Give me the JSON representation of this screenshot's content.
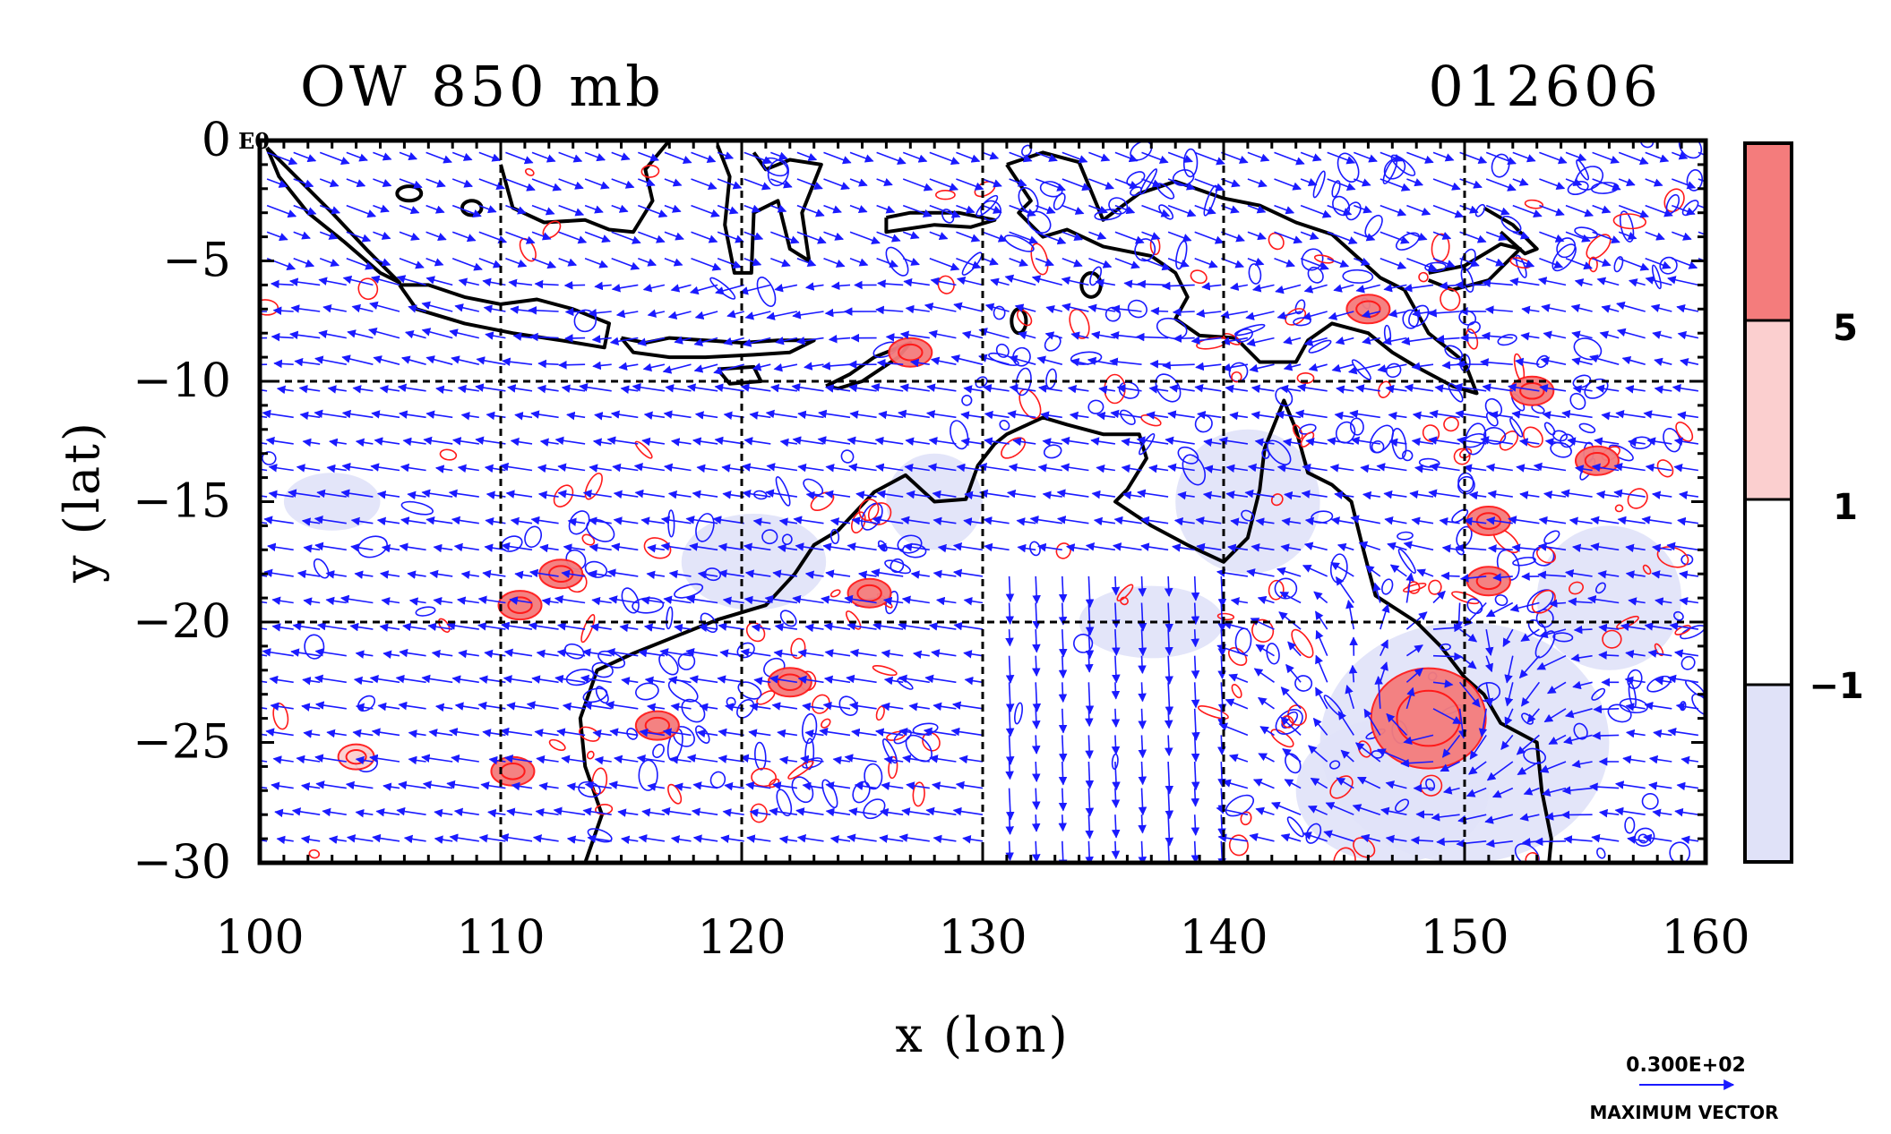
{
  "title_left": "OW 850 mb",
  "title_right": "012606",
  "corner_label": "E0",
  "xlabel": "x (lon)",
  "ylabel": "y (lat)",
  "x_ticks": [
    "100",
    "110",
    "120",
    "130",
    "140",
    "150",
    "160"
  ],
  "y_ticks": [
    "0",
    "−5",
    "−10",
    "−15",
    "−20",
    "−25",
    "−30"
  ],
  "colorbar": {
    "labels": [
      "5",
      "1",
      "−1"
    ],
    "colors": [
      "#f47c7c",
      "#fbcfcf",
      "#ffffff",
      "#e0e2f8"
    ]
  },
  "vector_legend": {
    "value": "0.300E+02",
    "label": "MAXIMUM VECTOR"
  },
  "colors": {
    "vectors": "#1a1aff",
    "positive_contour": "#ff1a1a",
    "coastline": "#000000",
    "negative_shade": "#e0e2f8",
    "positive_shade": "#f47c7c"
  },
  "chart_data": {
    "type": "map",
    "xlim": [
      100,
      160
    ],
    "ylim": [
      -30,
      0
    ],
    "grid": true,
    "x_grid": [
      110,
      120,
      130,
      140,
      150
    ],
    "y_grid": [
      -10,
      -20
    ],
    "colorbar_levels": [
      -1,
      1,
      5
    ],
    "features": [
      {
        "lon": 148.5,
        "lat": -24,
        "value": 5
      },
      {
        "lon": 155.5,
        "lat": -13.3,
        "value": 5
      },
      {
        "lon": 110.8,
        "lat": -19.3,
        "value": 5
      },
      {
        "lon": 125.3,
        "lat": -18.8,
        "value": 5
      },
      {
        "lon": 110.5,
        "lat": -26.2,
        "value": 5
      },
      {
        "lon": 104.0,
        "lat": -25.6,
        "value": 1
      },
      {
        "lon": 112.5,
        "lat": -18,
        "value": 5
      },
      {
        "lon": 152.8,
        "lat": -10.4,
        "value": 5
      },
      {
        "lon": 151.0,
        "lat": -18.3,
        "value": 5
      },
      {
        "lon": 151.0,
        "lat": -15.8,
        "value": 5
      },
      {
        "lon": 116.5,
        "lat": -24.3,
        "value": 5
      },
      {
        "lon": 122.0,
        "lat": -22.5,
        "value": 5
      },
      {
        "lon": 127.0,
        "lat": -8.8,
        "value": 5
      },
      {
        "lon": 146.0,
        "lat": -7.0,
        "value": 5
      }
    ]
  }
}
